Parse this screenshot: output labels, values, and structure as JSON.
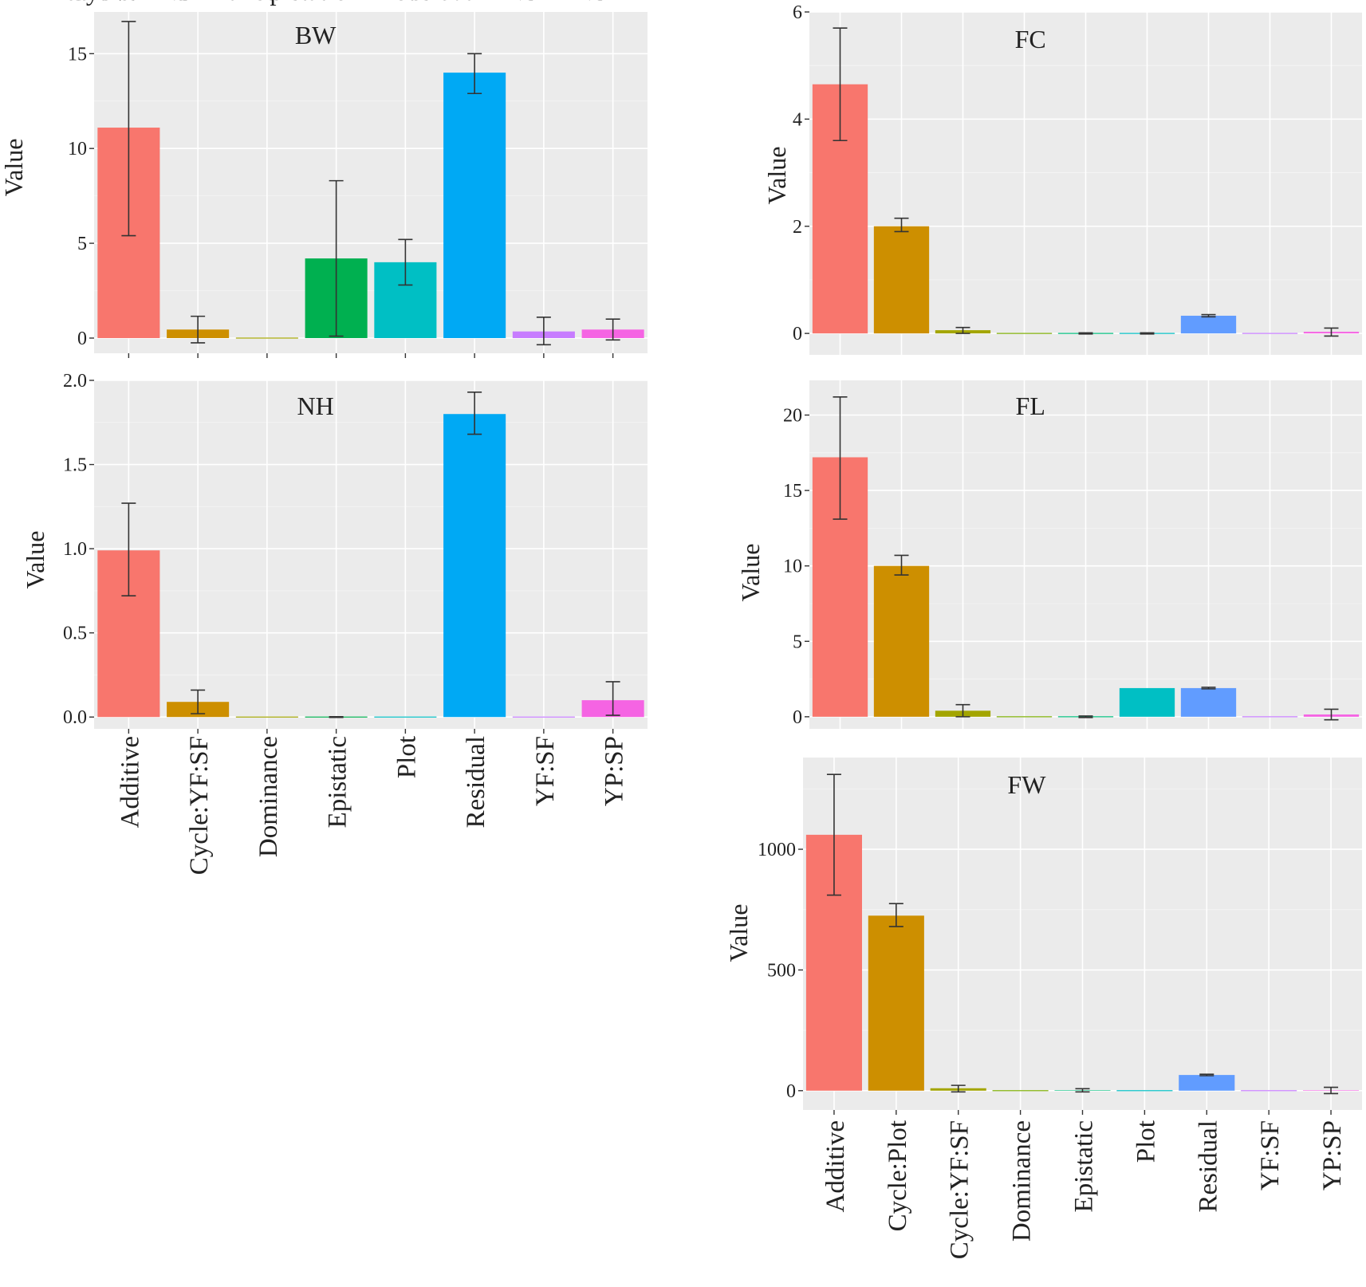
{
  "colors": {
    "Additive": "#f8766d",
    "Cycle:Plot": "#cd8f00",
    "Cycle:YF:SF": "#cd8f00",
    "Dominance": "#a3a500",
    "Epistatic": "#00b050",
    "Plot": "#00bfc4",
    "Residual": "#00a9f4",
    "YF:SF": "#c77cff",
    "YP:SP": "#f564e3"
  },
  "chart_data": [
    {
      "id": "BW",
      "type": "bar",
      "title": "BW",
      "ylabel": "Value",
      "xlabel": "",
      "ylim": [
        -0.8,
        17.2
      ],
      "yticks": [
        0,
        5,
        10,
        15
      ],
      "ytick_labels": [
        "0",
        "5",
        "10",
        "15"
      ],
      "show_x_labels": true,
      "categories": [
        "Additive",
        "Cycle:YF:SF",
        "Dominance",
        "Epistatic",
        "Plot",
        "Residual",
        "YF:SF",
        "YP:SP"
      ],
      "colors": [
        "#f8766d",
        "#cd8f00",
        "#a3a500",
        "#00b050",
        "#00bfc4",
        "#00a9f4",
        "#c77cff",
        "#f564e3"
      ],
      "values": [
        11.1,
        0.45,
        0.0,
        4.2,
        4.0,
        14.0,
        0.35,
        0.45
      ],
      "err_low": [
        5.4,
        -0.25,
        null,
        0.1,
        2.8,
        12.9,
        -0.35,
        -0.1
      ],
      "err_high": [
        16.7,
        1.15,
        null,
        8.3,
        5.2,
        15.0,
        1.1,
        1.0
      ]
    },
    {
      "id": "FC",
      "type": "bar",
      "title": "FC",
      "ylabel": "Value",
      "xlabel": "",
      "ylim": [
        -0.4,
        6.0
      ],
      "yticks": [
        0,
        2,
        4,
        6
      ],
      "ytick_labels": [
        "0",
        "2",
        "4",
        "6"
      ],
      "show_x_labels": false,
      "categories": [
        "Additive",
        "Cycle:Plot",
        "Cycle:YF:SF",
        "Dominance",
        "Epistatic",
        "Plot",
        "Residual",
        "YF:SF",
        "YP:SP"
      ],
      "colors": [
        "#f8766d",
        "#cd8f00",
        "#a3a500",
        "#7cae00",
        "#00bf7d",
        "#00bfc4",
        "#619cff",
        "#c77cff",
        "#f564e3"
      ],
      "values": [
        4.65,
        2.0,
        0.06,
        0.0,
        0.0,
        0.0,
        0.33,
        0.0,
        0.03
      ],
      "err_low": [
        3.6,
        1.9,
        0.0,
        null,
        -0.01,
        -0.01,
        0.31,
        null,
        -0.05
      ],
      "err_high": [
        5.7,
        2.15,
        0.11,
        null,
        0.01,
        0.01,
        0.35,
        null,
        0.1
      ]
    },
    {
      "id": "NH",
      "type": "bar",
      "title": "NH",
      "ylabel": "Value",
      "xlabel": "",
      "ylim": [
        -0.07,
        2.0
      ],
      "yticks": [
        0,
        0.5,
        1.0,
        1.5,
        2.0
      ],
      "ytick_labels": [
        "0.0",
        "0.5",
        "1.0",
        "1.5",
        "2.0"
      ],
      "show_x_labels": true,
      "categories": [
        "Additive",
        "Cycle:YF:SF",
        "Dominance",
        "Epistatic",
        "Plot",
        "Residual",
        "YF:SF",
        "YP:SP"
      ],
      "colors": [
        "#f8766d",
        "#cd8f00",
        "#a3a500",
        "#00b050",
        "#00bfc4",
        "#00a9f4",
        "#c77cff",
        "#f564e3"
      ],
      "values": [
        0.99,
        0.09,
        0.0,
        0.0,
        0.0,
        1.8,
        0.0,
        0.1
      ],
      "err_low": [
        0.72,
        0.02,
        null,
        -0.002,
        null,
        1.68,
        null,
        0.01
      ],
      "err_high": [
        1.27,
        0.16,
        null,
        0.002,
        null,
        1.93,
        null,
        0.21
      ]
    },
    {
      "id": "FL",
      "type": "bar",
      "title": "FL",
      "ylabel": "Value",
      "xlabel": "",
      "ylim": [
        -0.8,
        22.3
      ],
      "yticks": [
        0,
        5,
        10,
        15,
        20
      ],
      "ytick_labels": [
        "0",
        "5",
        "10",
        "15",
        "20"
      ],
      "show_x_labels": false,
      "categories": [
        "Additive",
        "Cycle:Plot",
        "Cycle:YF:SF",
        "Dominance",
        "Epistatic",
        "Plot",
        "Residual",
        "YF:SF",
        "YP:SP"
      ],
      "colors": [
        "#f8766d",
        "#cd8f00",
        "#a3a500",
        "#7cae00",
        "#00bf7d",
        "#00bfc4",
        "#619cff",
        "#c77cff",
        "#f564e3"
      ],
      "values": [
        17.2,
        10.0,
        0.4,
        0.0,
        0.0,
        1.9,
        1.9,
        0.0,
        0.15
      ],
      "err_low": [
        13.1,
        9.4,
        0.0,
        null,
        -0.05,
        null,
        1.85,
        null,
        -0.2
      ],
      "err_high": [
        21.2,
        10.7,
        0.8,
        null,
        0.05,
        null,
        1.95,
        null,
        0.5
      ]
    },
    {
      "id": "FW",
      "type": "bar",
      "title": "FW",
      "ylabel": "Value",
      "xlabel": "",
      "ylim": [
        -80,
        1380
      ],
      "yticks": [
        0,
        500,
        1000
      ],
      "ytick_labels": [
        "0",
        "500",
        "1000"
      ],
      "show_x_labels": true,
      "categories": [
        "Additive",
        "Cycle:Plot",
        "Cycle:YF:SF",
        "Dominance",
        "Epistatic",
        "Plot",
        "Residual",
        "YF:SF",
        "YP:SP"
      ],
      "colors": [
        "#f8766d",
        "#cd8f00",
        "#a3a500",
        "#7cae00",
        "#00bf7d",
        "#00bfc4",
        "#619cff",
        "#c77cff",
        "#f564e3"
      ],
      "values": [
        1060,
        725,
        10,
        0,
        2,
        0,
        65,
        0,
        2
      ],
      "err_low": [
        810,
        680,
        -5,
        null,
        -5,
        null,
        62,
        null,
        -12
      ],
      "err_high": [
        1310,
        775,
        22,
        null,
        8,
        null,
        68,
        null,
        14
      ]
    }
  ]
}
